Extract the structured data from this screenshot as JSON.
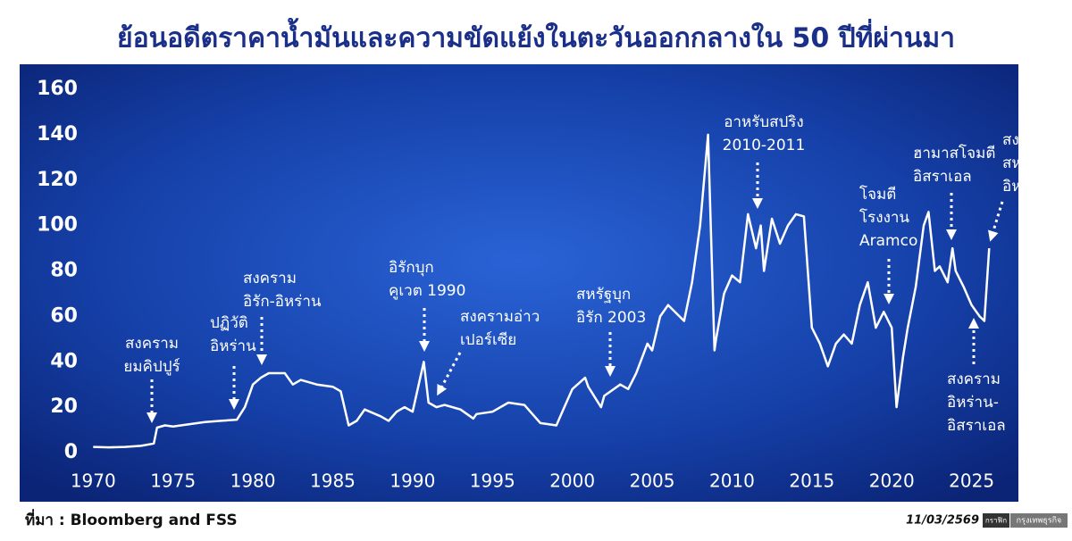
{
  "chart_data": {
    "type": "line",
    "title": "ย้อนอดีตราคาน้ำมันและความขัดแย้งในตะวันออกกลางใน 50 ปีที่ผ่านมา",
    "x": [
      1970,
      1971,
      1972,
      1973,
      1973.8,
      1974,
      1974.5,
      1975,
      1976,
      1977,
      1978,
      1979,
      1979.5,
      1980,
      1980.5,
      1981,
      1982,
      1982.5,
      1983,
      1984,
      1985,
      1985.5,
      1986,
      1986.5,
      1987,
      1988,
      1988.5,
      1989,
      1989.5,
      1990,
      1990.7,
      1991,
      1991.5,
      1992,
      1993,
      1993.8,
      1994,
      1995,
      1996,
      1997,
      1998,
      1999,
      1999.5,
      2000,
      2000.8,
      2001,
      2001.8,
      2002,
      2003,
      2003.5,
      2004,
      2004.7,
      2005,
      2005.5,
      2006,
      2007,
      2007.5,
      2008,
      2008.5,
      2008.9,
      2009,
      2009.5,
      2010,
      2010.5,
      2011,
      2011.5,
      2011.8,
      2012,
      2012.5,
      2013,
      2013.5,
      2014,
      2014.5,
      2015,
      2015.5,
      2016,
      2016.5,
      2017,
      2017.5,
      2018,
      2018.5,
      2019,
      2019.5,
      2020,
      2020.3,
      2020.7,
      2021,
      2021.5,
      2022,
      2022.3,
      2022.7,
      2023,
      2023.5,
      2023.8,
      2024,
      2024.5,
      2025,
      2025.5,
      2025.8,
      2026.1
    ],
    "values": [
      2.5,
      2.3,
      2.5,
      3,
      4,
      11,
      12,
      11.5,
      12.5,
      13.5,
      14,
      14.5,
      20,
      30,
      33,
      35,
      35,
      30,
      32,
      30,
      29,
      27,
      12,
      14,
      19,
      16,
      14,
      18,
      20,
      18,
      40,
      22,
      20,
      21,
      19,
      15,
      17,
      18,
      22,
      21,
      13,
      12,
      20,
      28,
      33,
      29,
      20,
      25,
      30,
      28,
      35,
      48,
      45,
      60,
      65,
      58,
      75,
      100,
      140,
      45,
      50,
      70,
      78,
      75,
      105,
      90,
      100,
      80,
      103,
      92,
      100,
      105,
      104,
      55,
      48,
      38,
      48,
      52,
      48,
      65,
      75,
      55,
      62,
      55,
      20,
      42,
      55,
      73,
      100,
      106,
      80,
      82,
      75,
      90,
      80,
      73,
      65,
      60,
      58,
      90
    ],
    "color": "#ffffff",
    "xlim": [
      1967.3,
      2028.6
    ],
    "xticks": [
      1970,
      1975,
      1980,
      1985,
      1990,
      1995,
      2000,
      2005,
      2010,
      2015,
      2020,
      2025
    ],
    "ylim": [
      0,
      160
    ],
    "yticks": [
      0,
      20,
      40,
      60,
      80,
      100,
      120,
      140,
      160
    ],
    "annotations": [
      [
        "สงคราม",
        "ยมคิปปูร์"
      ],
      [
        "ปฏิวัติ",
        "อิหร่าน"
      ],
      [
        "สงคราม",
        "อิรัก-อิหร่าน"
      ],
      [
        "อิรักบุก",
        "คูเวต 1990"
      ],
      [
        "สงครามอ่าว",
        "เปอร์เซีย"
      ],
      [
        "สหรัฐบุก",
        "อิรัก 2003"
      ],
      [
        "อาหรับสปริง",
        "2010-2011"
      ],
      [
        "โจมตี",
        "โรงงาน",
        "Aramco"
      ],
      [
        "ฮามาสโจมตี",
        "อิสราเอล"
      ],
      [
        "สงคราม",
        "สหรัฐฯ-",
        "อิหร่าน"
      ],
      [
        "สงคราม",
        "อิหร่าน-",
        "อิสราเอล"
      ]
    ],
    "source": "ที่มา : Bloomberg and FSS",
    "date": "11/03/2569",
    "logo": [
      "กราฟิก",
      "กรุงเทพธุรกิจ"
    ]
  }
}
